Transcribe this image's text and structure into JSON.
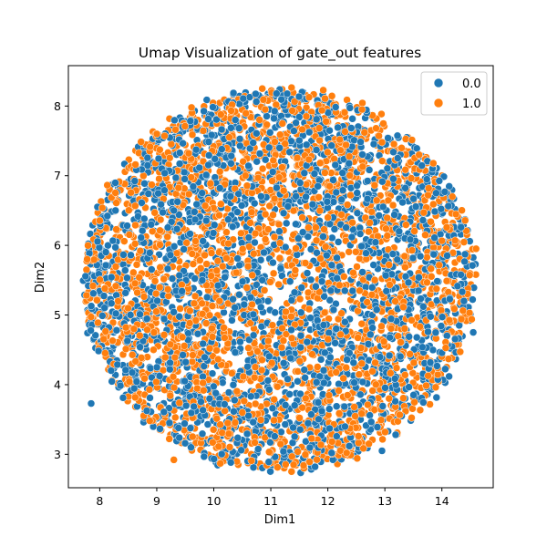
{
  "chart_data": {
    "type": "scatter",
    "title": "Umap Visualization of  gate_out features",
    "xlabel": "Dim1",
    "ylabel": "Dim2",
    "xlim": [
      7.45,
      14.9
    ],
    "ylim": [
      2.52,
      8.58
    ],
    "xticks": [
      "8",
      "9",
      "10",
      "11",
      "12",
      "13",
      "14"
    ],
    "yticks": [
      "3",
      "4",
      "5",
      "6",
      "7",
      "8"
    ],
    "grid": false,
    "legend_position": "top-right",
    "cluster": {
      "shape": "roughly circular cloud of thousands of densely overlapping points, both classes intermixed",
      "center": [
        11.15,
        5.5
      ],
      "x_extent": [
        7.75,
        14.6
      ],
      "y_extent": [
        2.77,
        8.25
      ]
    },
    "series": [
      {
        "name": "0.0",
        "color": "#1f77b4",
        "sample_points": [
          [
            7.85,
            3.73
          ],
          [
            11.1,
            8.18
          ],
          [
            14.55,
            4.75
          ],
          [
            13.9,
            6.75
          ],
          [
            8.2,
            4.2
          ],
          [
            9.6,
            3.1
          ],
          [
            12.95,
            3.05
          ],
          [
            10.85,
            5.5
          ],
          [
            12.3,
            4.9
          ],
          [
            13.25,
            6.2
          ],
          [
            9.3,
            6.5
          ],
          [
            11.6,
            4.1
          ]
        ]
      },
      {
        "name": "1.0",
        "color": "#ff7f0e",
        "sample_points": [
          [
            7.78,
            5.8
          ],
          [
            10.85,
            8.25
          ],
          [
            14.6,
            5.95
          ],
          [
            9.0,
            7.6
          ],
          [
            9.3,
            2.92
          ],
          [
            11.4,
            2.85
          ],
          [
            12.6,
            7.95
          ],
          [
            10.1,
            5.2
          ],
          [
            8.6,
            4.8
          ],
          [
            12.0,
            6.4
          ],
          [
            13.6,
            7.3
          ],
          [
            10.5,
            3.6
          ]
        ]
      }
    ]
  }
}
